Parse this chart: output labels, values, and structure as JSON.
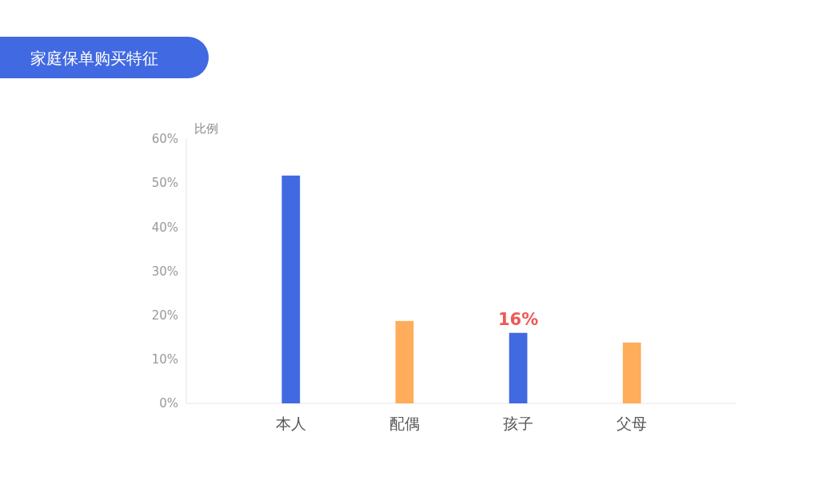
{
  "chart_data": {
    "type": "bar",
    "title": "家庭保单购买特征",
    "ylabel": "比例",
    "categories": [
      "本人",
      "配偶",
      "孩子",
      "父母"
    ],
    "values": [
      51.7,
      18.7,
      16,
      13.8
    ],
    "colors": [
      "#4169e1",
      "#ffad5a",
      "#4169e1",
      "#ffad5a"
    ],
    "value_labels": [
      null,
      null,
      "16%",
      null
    ],
    "ylim": [
      0,
      60
    ],
    "yticks": [
      {
        "value": 0,
        "label": "0%"
      },
      {
        "value": 10,
        "label": "10%"
      },
      {
        "value": 20,
        "label": "20%"
      },
      {
        "value": 30,
        "label": "30%"
      },
      {
        "value": 40,
        "label": "40%"
      },
      {
        "value": 50,
        "label": "50%"
      },
      {
        "value": 60,
        "label": "60%"
      }
    ],
    "grid": false
  }
}
